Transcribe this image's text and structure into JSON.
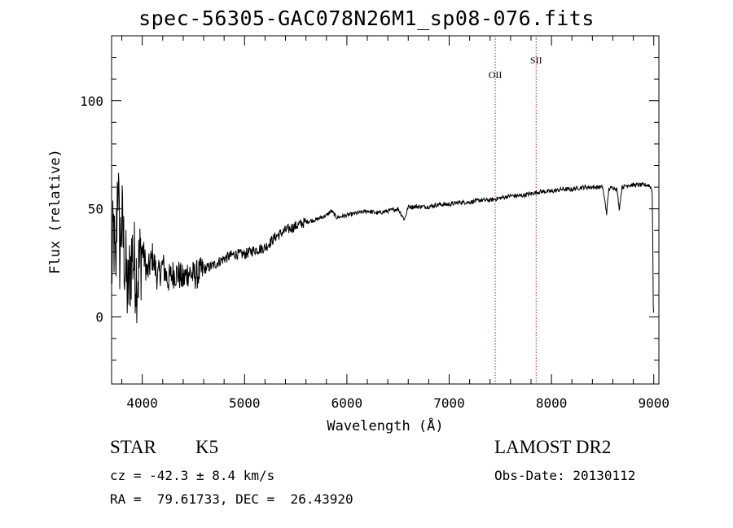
{
  "title": "spec-56305-GAC078N26M1_sp08-076.fits",
  "info": {
    "object_class": "STAR",
    "subclass": "K5",
    "survey": "LAMOST DR2",
    "cz": "cz = -42.3 ± 8.4 km/s",
    "obs_date": "Obs-Date: 20130112",
    "radec": "RA =  79.61733, DEC =  26.43920"
  },
  "chart_data": {
    "type": "line",
    "title": "spec-56305-GAC078N26M1_sp08-076.fits",
    "xlabel": "Wavelength (Å)",
    "ylabel": "Flux (relative)",
    "xlim": [
      3700,
      9050
    ],
    "ylim": [
      -31,
      130
    ],
    "xticks": [
      4000,
      5000,
      6000,
      7000,
      8000,
      9000
    ],
    "yticks": [
      0,
      50,
      100
    ],
    "grid": false,
    "line_color": "#000000",
    "marker_color": "#b22222",
    "series": [
      {
        "x": [
          3700,
          3720,
          3740,
          3760,
          3780,
          3800,
          3830,
          3860,
          3900,
          3950,
          4000,
          4050,
          4100,
          4150,
          4200,
          4250,
          4300,
          4350,
          4400,
          4450,
          4500,
          4550,
          4600,
          4700,
          4800,
          4900,
          5000,
          5100,
          5200,
          5300,
          5400,
          5500,
          5600,
          5700,
          5800,
          5850,
          5900,
          6000,
          6100,
          6200,
          6300,
          6400,
          6500,
          6563,
          6600,
          6700,
          6800,
          6900,
          7000,
          7100,
          7200,
          7300,
          7400,
          7500,
          7600,
          7700,
          7800,
          7900,
          8000,
          8100,
          8200,
          8300,
          8400,
          8500,
          8540,
          8560,
          8600,
          8640,
          8662,
          8690,
          8750,
          8800,
          8850,
          8900,
          8950,
          8970,
          8985,
          8990,
          8995,
          9000
        ],
        "values": [
          20,
          40,
          15,
          70,
          30,
          45,
          25,
          10,
          30,
          18,
          32,
          20,
          28,
          18,
          24,
          17,
          20,
          20,
          17,
          21,
          19,
          20,
          22,
          24,
          27,
          29,
          29,
          31,
          32,
          37,
          40,
          42,
          44,
          45,
          47,
          49,
          46,
          47,
          48,
          49,
          48,
          49,
          50,
          45,
          51,
          51,
          51,
          52,
          52,
          53,
          53,
          54,
          54,
          55,
          56,
          56,
          57,
          58,
          58,
          59,
          59,
          60,
          60,
          60,
          48,
          59,
          60,
          59,
          50,
          60,
          61,
          61,
          61,
          61,
          61,
          60,
          58,
          35,
          5,
          2
        ]
      }
    ],
    "lines": [
      {
        "name": "OII",
        "wavelength": 7450
      },
      {
        "name": "SII",
        "wavelength": 7850
      }
    ]
  }
}
